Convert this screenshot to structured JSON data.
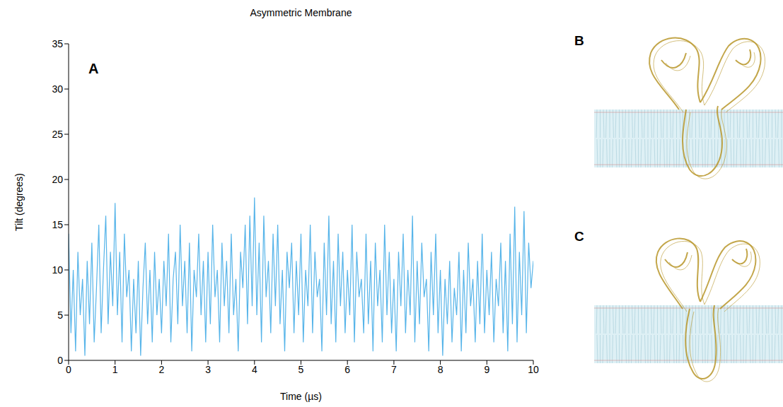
{
  "chart_data": {
    "type": "line",
    "title": "Asymmetric Membrane",
    "x_label": "Time (µs)",
    "y_label": "Tilt (degrees)",
    "annotations": [
      {
        "text": "A"
      }
    ],
    "color": "#56b4e9",
    "grid": false,
    "xlim": [
      0,
      10
    ],
    "xticks": [
      0,
      1,
      2,
      3,
      4,
      5,
      6,
      7,
      8,
      9,
      10
    ],
    "ylim": [
      0,
      35
    ],
    "yticks": [
      0,
      5,
      10,
      15,
      20,
      25,
      30,
      35
    ],
    "x": [
      0,
      0.05,
      0.1,
      0.15,
      0.2,
      0.25,
      0.3,
      0.35,
      0.4,
      0.45,
      0.5,
      0.55,
      0.6,
      0.65,
      0.7,
      0.75,
      0.8,
      0.85,
      0.9,
      0.95,
      1,
      1.05,
      1.1,
      1.15,
      1.2,
      1.25,
      1.3,
      1.35,
      1.4,
      1.45,
      1.5,
      1.55,
      1.6,
      1.65,
      1.7,
      1.75,
      1.8,
      1.85,
      1.9,
      1.95,
      2,
      2.05,
      2.1,
      2.15,
      2.2,
      2.25,
      2.3,
      2.35,
      2.4,
      2.45,
      2.5,
      2.55,
      2.6,
      2.65,
      2.7,
      2.75,
      2.8,
      2.85,
      2.9,
      2.95,
      3,
      3.05,
      3.1,
      3.15,
      3.2,
      3.25,
      3.3,
      3.35,
      3.4,
      3.45,
      3.5,
      3.55,
      3.6,
      3.65,
      3.7,
      3.75,
      3.8,
      3.85,
      3.9,
      3.95,
      4,
      4.05,
      4.1,
      4.15,
      4.2,
      4.25,
      4.3,
      4.35,
      4.4,
      4.45,
      4.5,
      4.55,
      4.6,
      4.65,
      4.7,
      4.75,
      4.8,
      4.85,
      4.9,
      4.95,
      5,
      5.05,
      5.1,
      5.15,
      5.2,
      5.25,
      5.3,
      5.35,
      5.4,
      5.45,
      5.5,
      5.55,
      5.6,
      5.65,
      5.7,
      5.75,
      5.8,
      5.85,
      5.9,
      5.95,
      6,
      6.05,
      6.1,
      6.15,
      6.2,
      6.25,
      6.3,
      6.35,
      6.4,
      6.45,
      6.5,
      6.55,
      6.6,
      6.65,
      6.7,
      6.75,
      6.8,
      6.85,
      6.9,
      6.95,
      7,
      7.05,
      7.1,
      7.15,
      7.2,
      7.25,
      7.3,
      7.35,
      7.4,
      7.45,
      7.5,
      7.55,
      7.6,
      7.65,
      7.7,
      7.75,
      7.8,
      7.85,
      7.9,
      7.95,
      8,
      8.05,
      8.1,
      8.15,
      8.2,
      8.25,
      8.3,
      8.35,
      8.4,
      8.45,
      8.5,
      8.55,
      8.6,
      8.65,
      8.7,
      8.75,
      8.8,
      8.85,
      8.9,
      8.95,
      9,
      9.05,
      9.1,
      9.15,
      9.2,
      9.25,
      9.3,
      9.35,
      9.4,
      9.45,
      9.5,
      9.55,
      9.6,
      9.65,
      9.7,
      9.75,
      9.8,
      9.85,
      9.9,
      9.95,
      10
    ],
    "values": [
      14,
      3,
      10,
      1,
      12,
      5,
      9,
      0.5,
      11,
      4,
      13,
      2,
      8,
      15,
      3,
      10,
      16,
      4,
      12,
      6,
      17.4,
      5,
      12,
      2,
      14,
      7,
      10,
      1,
      9,
      3,
      11,
      0.5,
      8,
      13,
      4,
      10,
      2,
      12,
      5,
      9,
      3,
      11,
      6,
      14,
      2,
      9,
      12,
      4,
      15,
      6,
      11,
      3,
      13,
      1,
      10,
      7,
      14,
      5,
      11,
      2,
      12,
      4,
      15,
      7,
      10,
      2,
      13,
      6,
      11,
      3,
      14,
      5,
      9,
      1,
      12,
      8,
      15,
      4,
      16,
      6,
      18,
      5,
      13,
      2,
      16,
      7,
      11,
      3,
      14,
      6,
      15,
      4,
      10,
      1,
      12,
      8,
      13,
      3,
      11,
      5,
      14,
      2,
      10,
      6,
      15,
      3,
      12,
      7,
      9,
      1,
      13,
      5,
      16,
      4,
      11,
      2,
      14,
      6,
      12,
      3,
      10,
      5,
      15,
      2,
      12,
      7,
      9,
      3,
      14,
      4,
      11,
      1,
      13,
      6,
      10,
      2,
      15,
      5,
      12,
      3,
      9,
      1,
      12,
      6,
      14,
      3,
      10,
      5,
      16,
      2,
      11,
      4,
      13,
      7,
      9,
      1,
      12,
      5,
      14,
      3,
      10,
      0.5,
      9,
      4,
      11,
      2,
      8,
      5,
      12,
      1,
      10,
      3,
      13,
      6,
      9,
      2,
      11,
      4,
      14,
      3,
      10,
      5,
      12,
      2,
      9,
      6,
      13,
      3,
      11,
      1,
      14,
      4,
      17,
      2,
      12,
      5,
      16.5,
      3,
      13,
      8,
      11
    ]
  },
  "figures": [
    {
      "label": "B"
    },
    {
      "label": "C"
    }
  ]
}
